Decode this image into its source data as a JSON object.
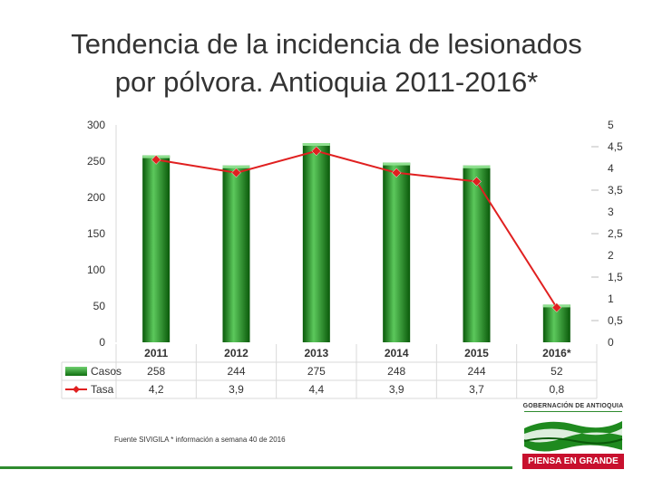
{
  "title": {
    "line1": "Tendencia de la incidencia de lesionados",
    "line2": "por pólvora.  Antioquia 2011-2016*"
  },
  "chart_data": {
    "type": "bar",
    "categories": [
      "2011",
      "2012",
      "2013",
      "2014",
      "2015",
      "2016*"
    ],
    "series": [
      {
        "name": "Casos",
        "kind": "bar",
        "axis": "left",
        "values": [
          258,
          244,
          275,
          248,
          244,
          52
        ],
        "labels": [
          "258",
          "244",
          "275",
          "248",
          "244",
          "52"
        ]
      },
      {
        "name": "Tasa",
        "kind": "line",
        "axis": "right",
        "values": [
          4.2,
          3.9,
          4.4,
          3.9,
          3.7,
          0.8
        ],
        "labels": [
          "4,2",
          "3,9",
          "4,4",
          "3,9",
          "3,7",
          "0,8"
        ]
      }
    ],
    "y_left": {
      "min": 0,
      "max": 300,
      "ticks": [
        "0",
        "50",
        "100",
        "150",
        "200",
        "250",
        "300"
      ]
    },
    "y_right": {
      "min": 0,
      "max": 5,
      "ticks": [
        "0",
        "0,5",
        "1",
        "1,5",
        "2",
        "2,5",
        "3",
        "3,5",
        "4",
        "4,5",
        "5"
      ]
    },
    "data_table": true,
    "colors": {
      "bar": "#1f8a1f",
      "bar_light": "#5cc85c",
      "bar_dark": "#0a5a0a",
      "line": "#e02020",
      "marker": "#e02020",
      "axis_text": "#333333",
      "grid": "#d9d9d9"
    }
  },
  "source": "Fuente SIVIGILA * información a semana 40 de 2016",
  "logo": {
    "organization": "GOBERNACIÓN DE ANTIOQUIA",
    "slogan": "PIENSA EN GRANDE",
    "icon": "flag-icon"
  }
}
